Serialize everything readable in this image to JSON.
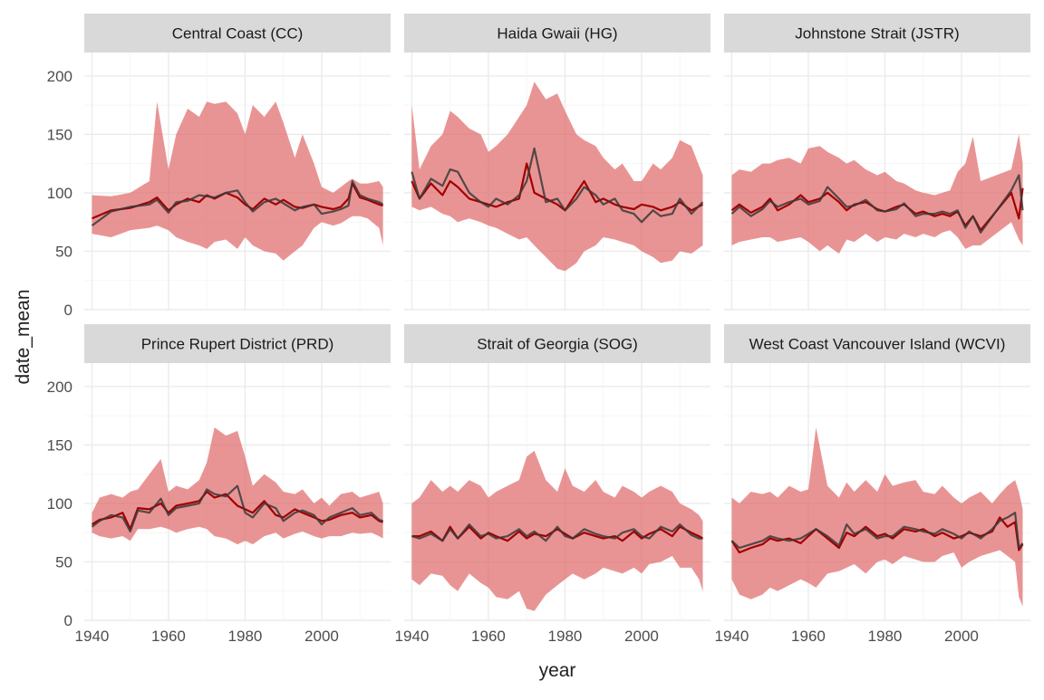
{
  "chart_data": {
    "type": "line",
    "facet_layout": "2x3",
    "xlabel": "year",
    "ylabel": "date_mean",
    "xlim": [
      1938,
      2018
    ],
    "ylim": [
      0,
      220
    ],
    "x_ticks": [
      1940,
      1960,
      1980,
      2000
    ],
    "y_ticks": [
      0,
      50,
      100,
      150,
      200
    ],
    "grid": true,
    "legend": "none",
    "colors": {
      "ribbon": "#e06666",
      "red_line": "#a00000",
      "dark_line": "#3a3a3a",
      "strip": "#d9d9d9",
      "grid": "#ebebeb"
    },
    "panels": [
      {
        "title": "Central Coast (CC)",
        "x": [
          1940,
          1945,
          1950,
          1955,
          1957,
          1960,
          1962,
          1965,
          1968,
          1970,
          1972,
          1975,
          1978,
          1980,
          1982,
          1985,
          1988,
          1990,
          1993,
          1995,
          1998,
          2000,
          2003,
          2005,
          2007,
          2008,
          2010,
          2012,
          2015,
          2016
        ],
        "red": [
          78,
          85,
          87,
          92,
          96,
          85,
          90,
          95,
          92,
          98,
          95,
          100,
          96,
          90,
          86,
          95,
          90,
          94,
          88,
          87,
          90,
          88,
          86,
          88,
          95,
          108,
          96,
          94,
          90,
          89
        ],
        "dark": [
          72,
          84,
          88,
          90,
          94,
          83,
          92,
          93,
          98,
          97,
          96,
          100,
          102,
          92,
          84,
          92,
          95,
          91,
          85,
          88,
          90,
          82,
          84,
          86,
          89,
          110,
          98,
          95,
          92,
          90
        ],
        "lower": [
          65,
          62,
          68,
          70,
          72,
          68,
          62,
          58,
          55,
          52,
          58,
          60,
          52,
          62,
          55,
          50,
          48,
          42,
          50,
          55,
          70,
          75,
          72,
          74,
          78,
          80,
          80,
          78,
          70,
          55
        ],
        "upper": [
          98,
          97,
          100,
          110,
          178,
          120,
          150,
          172,
          165,
          178,
          176,
          178,
          168,
          150,
          175,
          165,
          178,
          160,
          130,
          150,
          125,
          105,
          100,
          105,
          110,
          112,
          108,
          108,
          110,
          105
        ]
      },
      {
        "title": "Haida Gwaii (HG)",
        "x": [
          1940,
          1942,
          1945,
          1948,
          1950,
          1952,
          1955,
          1958,
          1960,
          1962,
          1965,
          1968,
          1970,
          1972,
          1975,
          1978,
          1980,
          1983,
          1985,
          1988,
          1990,
          1993,
          1995,
          1998,
          2000,
          2003,
          2005,
          2008,
          2010,
          2013,
          2016
        ],
        "red": [
          110,
          95,
          108,
          98,
          110,
          105,
          95,
          92,
          90,
          88,
          92,
          95,
          125,
          100,
          95,
          90,
          85,
          100,
          110,
          92,
          95,
          90,
          88,
          86,
          90,
          88,
          85,
          88,
          92,
          85,
          90
        ],
        "dark": [
          118,
          95,
          112,
          106,
          120,
          118,
          100,
          92,
          88,
          95,
          90,
          98,
          110,
          138,
          92,
          95,
          85,
          95,
          105,
          98,
          90,
          95,
          85,
          82,
          75,
          85,
          80,
          82,
          95,
          82,
          92
        ],
        "lower": [
          88,
          85,
          88,
          82,
          80,
          75,
          78,
          75,
          72,
          70,
          65,
          60,
          62,
          55,
          45,
          35,
          33,
          40,
          50,
          55,
          62,
          60,
          58,
          55,
          50,
          45,
          40,
          42,
          50,
          48,
          55
        ],
        "upper": [
          175,
          120,
          140,
          150,
          170,
          165,
          155,
          150,
          135,
          140,
          150,
          165,
          175,
          195,
          180,
          185,
          170,
          150,
          145,
          140,
          130,
          120,
          125,
          110,
          110,
          125,
          120,
          130,
          145,
          140,
          115
        ]
      },
      {
        "title": "Johnstone Strait (JSTR)",
        "x": [
          1940,
          1942,
          1945,
          1948,
          1950,
          1952,
          1955,
          1958,
          1960,
          1963,
          1965,
          1968,
          1970,
          1972,
          1975,
          1978,
          1980,
          1983,
          1985,
          1988,
          1990,
          1993,
          1995,
          1997,
          1999,
          2001,
          2003,
          2005,
          2013,
          2015,
          2016
        ],
        "red": [
          85,
          90,
          83,
          88,
          95,
          85,
          90,
          98,
          92,
          95,
          100,
          92,
          85,
          90,
          92,
          86,
          84,
          88,
          90,
          82,
          84,
          80,
          82,
          80,
          84,
          72,
          80,
          68,
          100,
          78,
          104
        ],
        "dark": [
          82,
          88,
          80,
          86,
          93,
          88,
          92,
          95,
          90,
          93,
          105,
          95,
          88,
          89,
          94,
          85,
          84,
          86,
          91,
          80,
          82,
          82,
          84,
          82,
          85,
          70,
          80,
          66,
          102,
          115,
          85
        ],
        "lower": [
          55,
          58,
          60,
          62,
          62,
          58,
          60,
          62,
          58,
          50,
          55,
          48,
          60,
          58,
          65,
          58,
          62,
          60,
          65,
          62,
          65,
          62,
          66,
          68,
          62,
          52,
          55,
          55,
          75,
          60,
          55
        ],
        "upper": [
          115,
          120,
          118,
          125,
          125,
          128,
          130,
          125,
          138,
          140,
          135,
          130,
          125,
          128,
          120,
          115,
          118,
          110,
          108,
          102,
          100,
          98,
          100,
          102,
          118,
          125,
          148,
          110,
          120,
          150,
          125
        ]
      },
      {
        "title": "Prince Rupert District (PRD)",
        "x": [
          1940,
          1942,
          1945,
          1948,
          1950,
          1952,
          1955,
          1958,
          1960,
          1962,
          1965,
          1968,
          1970,
          1972,
          1975,
          1978,
          1980,
          1982,
          1985,
          1988,
          1990,
          1993,
          1995,
          1998,
          2000,
          2002,
          2005,
          2008,
          2010,
          2013,
          2015,
          2016
        ],
        "red": [
          82,
          86,
          88,
          92,
          78,
          96,
          95,
          100,
          92,
          98,
          100,
          102,
          110,
          105,
          108,
          98,
          95,
          92,
          102,
          90,
          88,
          95,
          92,
          88,
          85,
          86,
          90,
          92,
          88,
          90,
          85,
          84
        ],
        "dark": [
          80,
          85,
          90,
          88,
          76,
          94,
          92,
          104,
          90,
          96,
          98,
          100,
          112,
          108,
          106,
          115,
          92,
          88,
          100,
          96,
          85,
          92,
          94,
          90,
          82,
          88,
          92,
          96,
          90,
          92,
          86,
          85
        ],
        "lower": [
          75,
          72,
          70,
          72,
          68,
          78,
          78,
          80,
          78,
          75,
          78,
          80,
          78,
          72,
          70,
          65,
          68,
          65,
          72,
          75,
          70,
          74,
          76,
          72,
          70,
          72,
          72,
          75,
          74,
          75,
          72,
          70
        ],
        "upper": [
          92,
          105,
          108,
          105,
          110,
          112,
          125,
          138,
          110,
          115,
          112,
          120,
          135,
          165,
          158,
          162,
          140,
          115,
          125,
          118,
          110,
          108,
          112,
          100,
          105,
          98,
          108,
          110,
          105,
          108,
          110,
          100
        ]
      },
      {
        "title": "Strait of Georgia (SOG)",
        "x": [
          1940,
          1942,
          1945,
          1948,
          1950,
          1952,
          1955,
          1958,
          1960,
          1962,
          1965,
          1968,
          1970,
          1972,
          1975,
          1978,
          1980,
          1982,
          1985,
          1988,
          1990,
          1993,
          1995,
          1998,
          2000,
          2002,
          2005,
          2008,
          2010,
          2013,
          2015,
          2016
        ],
        "red": [
          72,
          72,
          76,
          68,
          80,
          70,
          80,
          70,
          75,
          72,
          68,
          76,
          70,
          74,
          72,
          78,
          74,
          70,
          75,
          72,
          70,
          72,
          68,
          76,
          70,
          74,
          78,
          72,
          80,
          75,
          72,
          70
        ],
        "dark": [
          72,
          70,
          74,
          68,
          78,
          70,
          82,
          72,
          74,
          70,
          72,
          78,
          72,
          76,
          68,
          80,
          72,
          70,
          78,
          74,
          72,
          70,
          75,
          78,
          72,
          70,
          80,
          76,
          82,
          73,
          70,
          70
        ],
        "lower": [
          35,
          30,
          40,
          38,
          30,
          25,
          40,
          32,
          28,
          20,
          18,
          25,
          10,
          8,
          22,
          30,
          35,
          40,
          35,
          40,
          45,
          42,
          40,
          45,
          40,
          48,
          50,
          55,
          45,
          45,
          35,
          25
        ],
        "upper": [
          100,
          105,
          120,
          110,
          115,
          110,
          120,
          115,
          105,
          110,
          115,
          120,
          140,
          145,
          120,
          110,
          130,
          115,
          110,
          120,
          110,
          105,
          115,
          110,
          105,
          110,
          115,
          110,
          100,
          95,
          90,
          85
        ]
      },
      {
        "title": "West Coast Vancouver Island (WCVI)",
        "x": [
          1940,
          1942,
          1945,
          1948,
          1950,
          1952,
          1955,
          1958,
          1960,
          1962,
          1965,
          1968,
          1970,
          1972,
          1975,
          1978,
          1980,
          1982,
          1985,
          1988,
          1990,
          1993,
          1995,
          1998,
          2000,
          2002,
          2005,
          2008,
          2010,
          2012,
          2014,
          2015,
          2016
        ],
        "red": [
          68,
          58,
          62,
          65,
          70,
          68,
          70,
          66,
          72,
          78,
          70,
          62,
          75,
          72,
          80,
          72,
          74,
          70,
          78,
          76,
          78,
          72,
          75,
          70,
          72,
          75,
          72,
          76,
          88,
          80,
          84,
          60,
          65
        ],
        "dark": [
          68,
          62,
          65,
          68,
          72,
          70,
          68,
          70,
          74,
          78,
          72,
          64,
          82,
          74,
          78,
          70,
          72,
          72,
          80,
          78,
          76,
          74,
          78,
          74,
          70,
          76,
          70,
          78,
          85,
          88,
          92,
          62,
          66
        ],
        "lower": [
          35,
          22,
          18,
          22,
          28,
          25,
          30,
          35,
          32,
          28,
          40,
          42,
          45,
          48,
          40,
          50,
          52,
          48,
          55,
          52,
          50,
          50,
          55,
          58,
          45,
          50,
          55,
          58,
          60,
          55,
          50,
          20,
          12
        ],
        "upper": [
          105,
          100,
          110,
          108,
          110,
          105,
          115,
          110,
          112,
          165,
          115,
          105,
          118,
          110,
          120,
          110,
          125,
          115,
          118,
          120,
          110,
          108,
          115,
          105,
          100,
          105,
          110,
          100,
          108,
          115,
          120,
          110,
          95
        ]
      }
    ]
  }
}
